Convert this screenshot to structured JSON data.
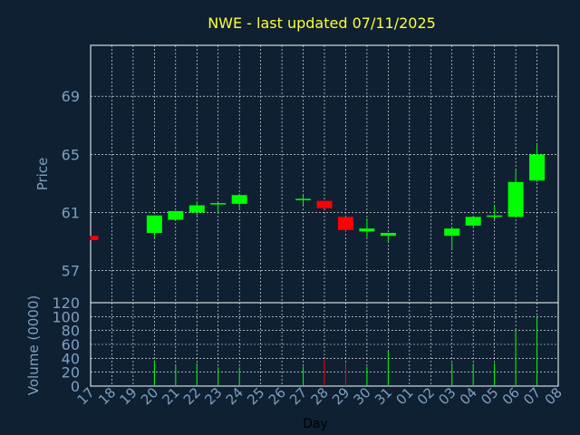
{
  "chart_data": {
    "type": "candlestick",
    "title": "NWE - last updated 07/11/2025",
    "xlabel": "Day",
    "ylabel_price": "Price",
    "ylabel_volume": "Volume (0000)",
    "price_ticks": [
      "57",
      "61",
      "65",
      "69"
    ],
    "volume_ticks": [
      "0",
      "20",
      "40",
      "60",
      "80",
      "100",
      "120"
    ],
    "ylim_price": [
      54.8,
      72.5
    ],
    "ylim_volume": [
      0,
      120
    ],
    "grid": true,
    "days": [
      "17",
      "18",
      "19",
      "20",
      "21",
      "22",
      "23",
      "24",
      "25",
      "26",
      "27",
      "28",
      "29",
      "30",
      "31",
      "01",
      "02",
      "03",
      "04",
      "05",
      "06",
      "07",
      "08"
    ],
    "candles": [
      {
        "day": "17",
        "open": 59.4,
        "close": 59.1,
        "high": 59.4,
        "low": 59.1,
        "volume": null
      },
      {
        "day": "20",
        "open": 59.6,
        "close": 60.8,
        "high": 60.8,
        "low": 59.3,
        "volume": 37
      },
      {
        "day": "21",
        "open": 60.5,
        "close": 61.1,
        "high": 61.1,
        "low": 60.5,
        "volume": 30
      },
      {
        "day": "22",
        "open": 61.0,
        "close": 61.5,
        "high": 61.7,
        "low": 60.8,
        "volume": 33
      },
      {
        "day": "23",
        "open": 61.6,
        "close": 61.6,
        "high": 61.6,
        "low": 60.9,
        "volume": 27
      },
      {
        "day": "24",
        "open": 61.6,
        "close": 62.2,
        "high": 62.3,
        "low": 61.3,
        "volume": 27
      },
      {
        "day": "27",
        "open": 61.9,
        "close": 61.9,
        "high": 62.2,
        "low": 61.5,
        "volume": 28
      },
      {
        "day": "28",
        "open": 61.8,
        "close": 61.3,
        "high": 61.8,
        "low": 61.3,
        "volume": 38
      },
      {
        "day": "29",
        "open": 60.7,
        "close": 59.8,
        "high": 60.7,
        "low": 59.7,
        "volume": 33
      },
      {
        "day": "30",
        "open": 59.7,
        "close": 59.9,
        "high": 60.6,
        "low": 59.3,
        "volume": 28
      },
      {
        "day": "31",
        "open": 59.4,
        "close": 59.6,
        "high": 59.6,
        "low": 59.0,
        "volume": 50
      },
      {
        "day": "03",
        "open": 59.4,
        "close": 59.9,
        "high": 59.9,
        "low": 58.5,
        "volume": 33
      },
      {
        "day": "04",
        "open": 60.1,
        "close": 60.7,
        "high": 60.7,
        "low": 60.0,
        "volume": 32
      },
      {
        "day": "05",
        "open": 60.7,
        "close": 60.8,
        "high": 61.5,
        "low": 60.5,
        "volume": 33
      },
      {
        "day": "06",
        "open": 60.7,
        "close": 63.1,
        "high": 63.9,
        "low": 60.7,
        "volume": 80
      },
      {
        "day": "07",
        "open": 63.2,
        "close": 65.0,
        "high": 65.7,
        "low": 63.1,
        "volume": 100
      }
    ],
    "colors": {
      "background": "#0f2033",
      "frame": "#ffffff",
      "grid": "#ffffff",
      "up": "#00ff00",
      "down": "#ff0000",
      "title": "#ffff33",
      "axis_text": "#7f9fc0",
      "xlabel_text": "#000000"
    }
  }
}
